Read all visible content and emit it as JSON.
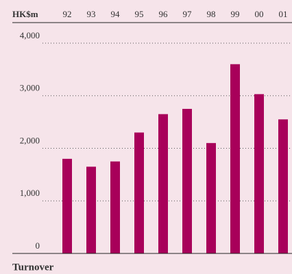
{
  "chart_data": {
    "type": "bar",
    "title": "Turnover",
    "y_label": "HK$m",
    "categories": [
      "92",
      "93",
      "94",
      "95",
      "96",
      "97",
      "98",
      "99",
      "00",
      "01"
    ],
    "values": [
      1800,
      1650,
      1750,
      2300,
      2650,
      2750,
      2100,
      3600,
      3030,
      2550
    ],
    "color": "#a8005a",
    "ylim": [
      0,
      4000
    ],
    "yticks": [
      0,
      {
        "value": 1000,
        "label": "1,000"
      },
      {
        "value": 2000,
        "label": "2,000"
      },
      {
        "value": 3000,
        "label": "3,000"
      },
      {
        "value": 4000,
        "label": "4,000"
      }
    ],
    "grid": true
  }
}
